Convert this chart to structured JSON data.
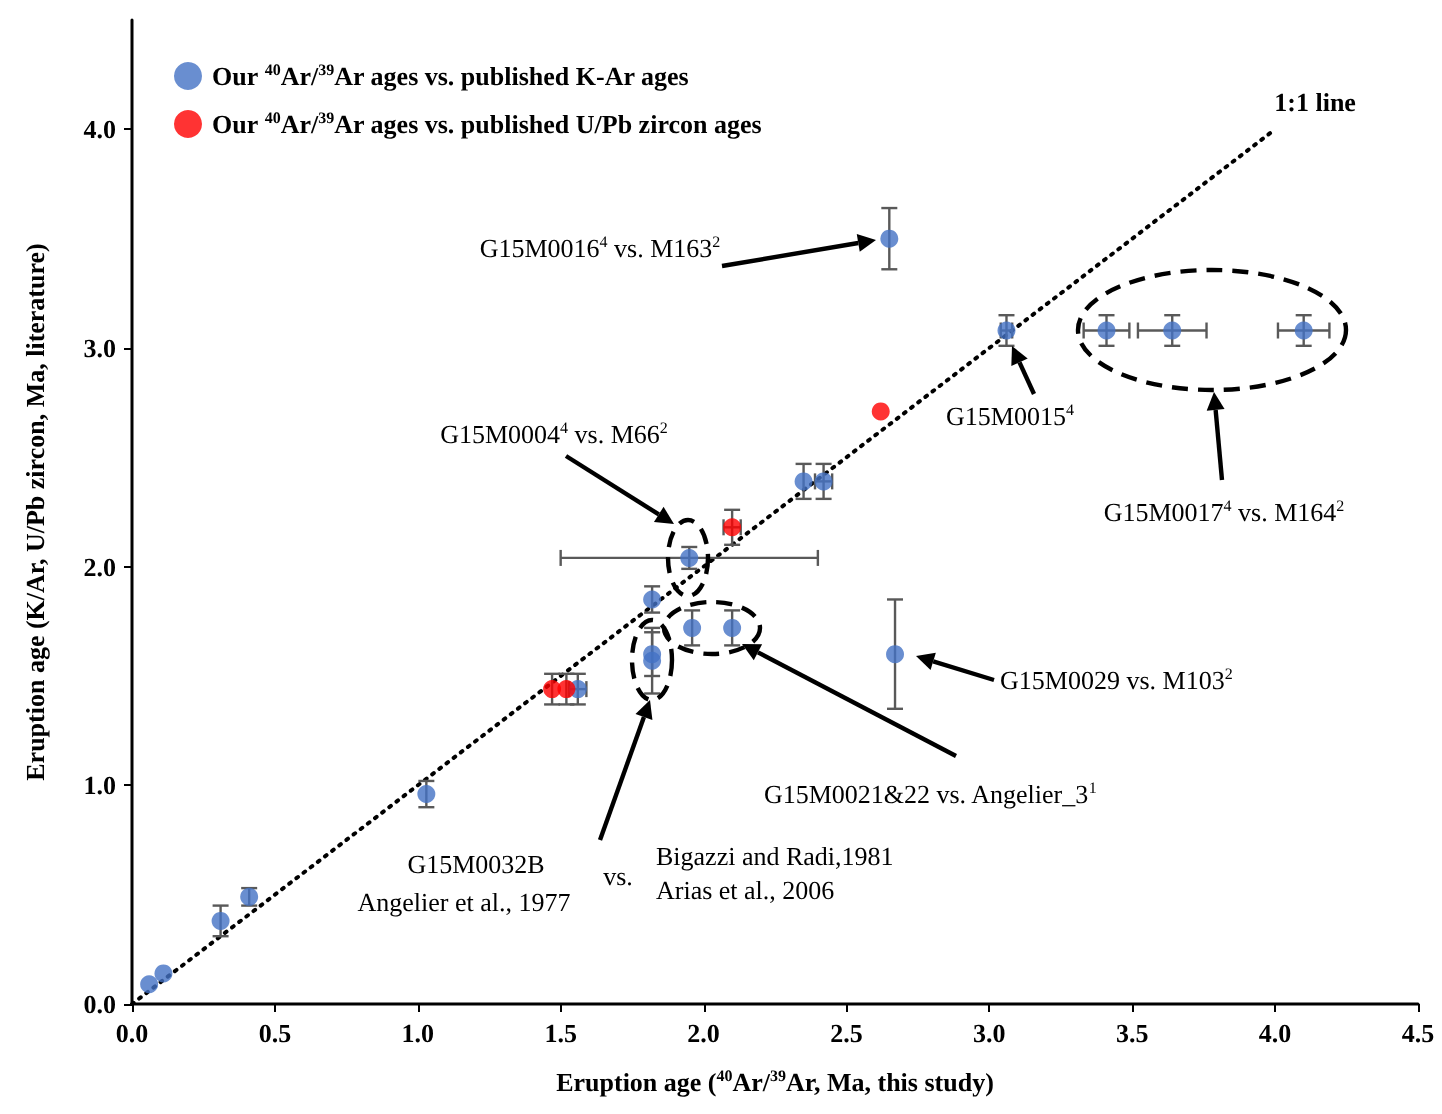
{
  "chart_data": {
    "type": "scatter",
    "xlabel": "Eruption age ($^{40}$Ar/$^{39}$Ar, Ma, this study)",
    "ylabel": "Eruption age (K/Ar, U/Pb zircon, Ma, literature)",
    "xlim": [
      0,
      4.5
    ],
    "ylim": [
      0,
      4.5
    ],
    "xticks": [
      {
        "value": 0,
        "label": "0.0"
      },
      {
        "value": 0.5,
        "label": "0.5"
      },
      {
        "value": 1,
        "label": "1.0"
      },
      {
        "value": 1.5,
        "label": "1.5"
      },
      {
        "value": 2,
        "label": "2.0"
      },
      {
        "value": 2.5,
        "label": "2.5"
      },
      {
        "value": 3,
        "label": "3.0"
      },
      {
        "value": 3.5,
        "label": "3.5"
      },
      {
        "value": 4,
        "label": "4.0"
      },
      {
        "value": 4.5,
        "label": "4.5"
      }
    ],
    "yticks": [
      {
        "value": 0,
        "label": "0.0"
      },
      {
        "value": 1,
        "label": "1.0"
      },
      {
        "value": 2,
        "label": "2.0"
      },
      {
        "value": 3,
        "label": "3.0"
      },
      {
        "value": 4,
        "label": "4.0"
      }
    ],
    "grid": false,
    "legend": "top left",
    "marker": "circle",
    "series": [
      {
        "name": "Our $^{40}$Ar/$^{39}$Ar ages vs. published K-Ar ages",
        "color": "#4472c4",
        "x": [
          0.06,
          0.11,
          0.31,
          0.41,
          1.03,
          1.56,
          1.82,
          1.82,
          1.82,
          1.96,
          2.1,
          1.95,
          2.35,
          2.42,
          2.67,
          2.65,
          3.06,
          3.41,
          3.64,
          4.1
        ],
        "values": [
          0.09,
          0.14,
          0.38,
          0.49,
          0.96,
          1.44,
          1.85,
          1.6,
          1.57,
          1.72,
          1.72,
          2.04,
          2.39,
          2.39,
          1.6,
          3.5,
          3.08,
          3.08,
          3.08,
          3.08
        ],
        "errors": [
          null,
          null,
          0.07,
          0.04,
          0.06,
          0.07,
          0.06,
          0.1,
          0.15,
          0.08,
          0.08,
          0.05,
          0.08,
          0.08,
          0.25,
          0.14,
          0.07,
          0.07,
          0.07,
          0.07
        ],
        "xerrors": [
          null,
          null,
          null,
          null,
          null,
          0.03,
          null,
          null,
          null,
          null,
          null,
          [
            1.5,
            2.4
          ],
          null,
          0.03,
          null,
          null,
          0.02,
          0.08,
          0.12,
          0.09
        ]
      },
      {
        "name": "Our $^{40}$Ar/$^{39}$Ar ages vs. published U/Pb zircon ages",
        "color": "#ff0000",
        "x": [
          1.47,
          1.52,
          2.1,
          2.62
        ],
        "values": [
          1.44,
          1.44,
          2.18,
          2.71
        ],
        "errors": [
          0.07,
          0.07,
          0.08,
          null
        ],
        "xerrors": [
          null,
          null,
          0.03,
          null
        ]
      },
      {
        "name": "1:1 line",
        "type": "line",
        "color": "#000000",
        "line_style": "dotted",
        "marker": "none",
        "x": [
          0,
          4
        ],
        "values": [
          0,
          4
        ]
      }
    ],
    "annotations": [
      "G15M0016$^{4}$ vs. M163$^{2}$",
      "G15M0015$^{4}$",
      "G15M0017$^{4}$ vs. M164$^{2}$",
      "G15M0004$^{4}$ vs. M66$^{2}$",
      "G15M0029 vs. M103$^{2}$",
      "G15M0021&22 vs. Angelier_3$^{1}$",
      "G15M0032B",
      "Angelier et al., 1977",
      "vs.",
      "Bigazzi and Radi,1981",
      "Arias et al., 2006"
    ]
  }
}
